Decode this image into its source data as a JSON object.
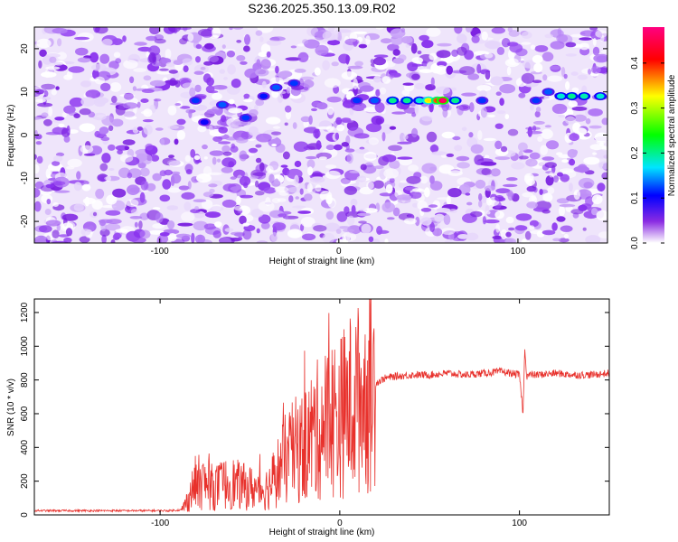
{
  "page_title": "S236.2025.350.13.09.R02",
  "chart_data": [
    {
      "type": "heatmap",
      "title": "S236.2025.350.13.09.R02",
      "xlabel": "Height of straight line (km)",
      "ylabel": "Frequency (Hz)",
      "xlim": [
        -170,
        150
      ],
      "ylim": [
        -25,
        25
      ],
      "x_ticks": [
        -100,
        0,
        100
      ],
      "x_tick_labels": [
        "-100",
        "0",
        "100"
      ],
      "y_ticks": [
        -20,
        -10,
        0,
        10,
        20
      ],
      "y_tick_labels": [
        "-20",
        "-10",
        "0",
        "10",
        "20"
      ],
      "colorbar": {
        "label": "Normalized spectral amplitude",
        "range": [
          0,
          0.48
        ],
        "ticks": [
          0.0,
          0.1,
          0.2,
          0.3,
          0.4
        ],
        "tick_labels": [
          "0.0",
          "0.1",
          "0.2",
          "0.3",
          "0.4"
        ],
        "colors": [
          "#ffffff",
          "#8a2be2",
          "#0000ff",
          "#00e5ff",
          "#00ff00",
          "#ffff00",
          "#ff0000",
          "#ff0080"
        ]
      },
      "ridge": {
        "description_frequency_hz": 8,
        "points": [
          {
            "x": -80,
            "y": 8,
            "v": 0.12
          },
          {
            "x": -75,
            "y": 3,
            "v": 0.1
          },
          {
            "x": -65,
            "y": 7,
            "v": 0.13
          },
          {
            "x": -52,
            "y": 4,
            "v": 0.12
          },
          {
            "x": -42,
            "y": 9,
            "v": 0.11
          },
          {
            "x": -35,
            "y": 11,
            "v": 0.13
          },
          {
            "x": -25,
            "y": 12,
            "v": 0.12
          },
          {
            "x": 10,
            "y": 8,
            "v": 0.12
          },
          {
            "x": 20,
            "y": 8,
            "v": 0.13
          },
          {
            "x": 30,
            "y": 8,
            "v": 0.2
          },
          {
            "x": 38,
            "y": 8,
            "v": 0.2
          },
          {
            "x": 45,
            "y": 8,
            "v": 0.18
          },
          {
            "x": 50,
            "y": 8,
            "v": 0.32
          },
          {
            "x": 55,
            "y": 8,
            "v": 0.38
          },
          {
            "x": 58,
            "y": 8,
            "v": 0.45
          },
          {
            "x": 65,
            "y": 8,
            "v": 0.2
          },
          {
            "x": 80,
            "y": 8,
            "v": 0.12
          },
          {
            "x": 110,
            "y": 8,
            "v": 0.12
          },
          {
            "x": 117,
            "y": 10,
            "v": 0.13
          },
          {
            "x": 124,
            "y": 9,
            "v": 0.18
          },
          {
            "x": 130,
            "y": 9,
            "v": 0.2
          },
          {
            "x": 137,
            "y": 9,
            "v": 0.19
          },
          {
            "x": 146,
            "y": 9,
            "v": 0.18
          }
        ]
      }
    },
    {
      "type": "line",
      "xlabel": "Height of straight line (km)",
      "ylabel": "SNR (10 * v/v)",
      "xlim": [
        -170,
        150
      ],
      "ylim": [
        0,
        1280
      ],
      "x_ticks": [
        -100,
        0,
        100
      ],
      "x_tick_labels": [
        "-100",
        "0",
        "100"
      ],
      "y_ticks": [
        0,
        200,
        400,
        600,
        800,
        1000,
        1200
      ],
      "y_tick_labels": [
        "0",
        "200",
        "400",
        "600",
        "800",
        "1000",
        "1200"
      ],
      "color": "#e8312c",
      "series": [
        {
          "x": [
            -170,
            -150,
            -130,
            -110,
            -95,
            -88,
            -85,
            -80,
            -75,
            -70,
            -65,
            -60,
            -55,
            -50,
            -45,
            -40,
            -35,
            -30,
            -25,
            -20,
            -15,
            -10,
            -5,
            0,
            5,
            10,
            15,
            20,
            25,
            30,
            40,
            50,
            60,
            70,
            80,
            90,
            95,
            100,
            102,
            103,
            104,
            105,
            110,
            120,
            130,
            140,
            150
          ],
          "y": [
            25,
            25,
            25,
            25,
            25,
            30,
            80,
            200,
            180,
            160,
            180,
            190,
            170,
            160,
            150,
            160,
            250,
            330,
            380,
            400,
            480,
            520,
            580,
            580,
            650,
            680,
            720,
            780,
            810,
            820,
            830,
            830,
            840,
            830,
            840,
            850,
            840,
            830,
            600,
            1000,
            820,
            830,
            830,
            840,
            830,
            830,
            840
          ]
        }
      ]
    }
  ]
}
